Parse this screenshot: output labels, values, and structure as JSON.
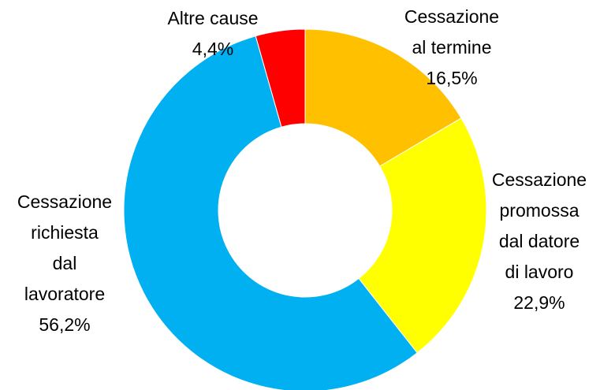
{
  "chart_data": {
    "type": "donut",
    "categories": [
      "Cessazione\nal termine",
      "Cessazione\npromossa\ndal datore\ndi lavoro",
      "Cessazione\nrichiesta\ndal\nlavoratore",
      "Altre cause"
    ],
    "values": [
      16.5,
      22.9,
      56.2,
      4.4
    ],
    "value_labels": [
      "16,5%",
      "22,9%",
      "56,2%",
      "4,4%"
    ],
    "colors": [
      "#ffc000",
      "#ffff00",
      "#00b0f0",
      "#ff0000"
    ]
  }
}
